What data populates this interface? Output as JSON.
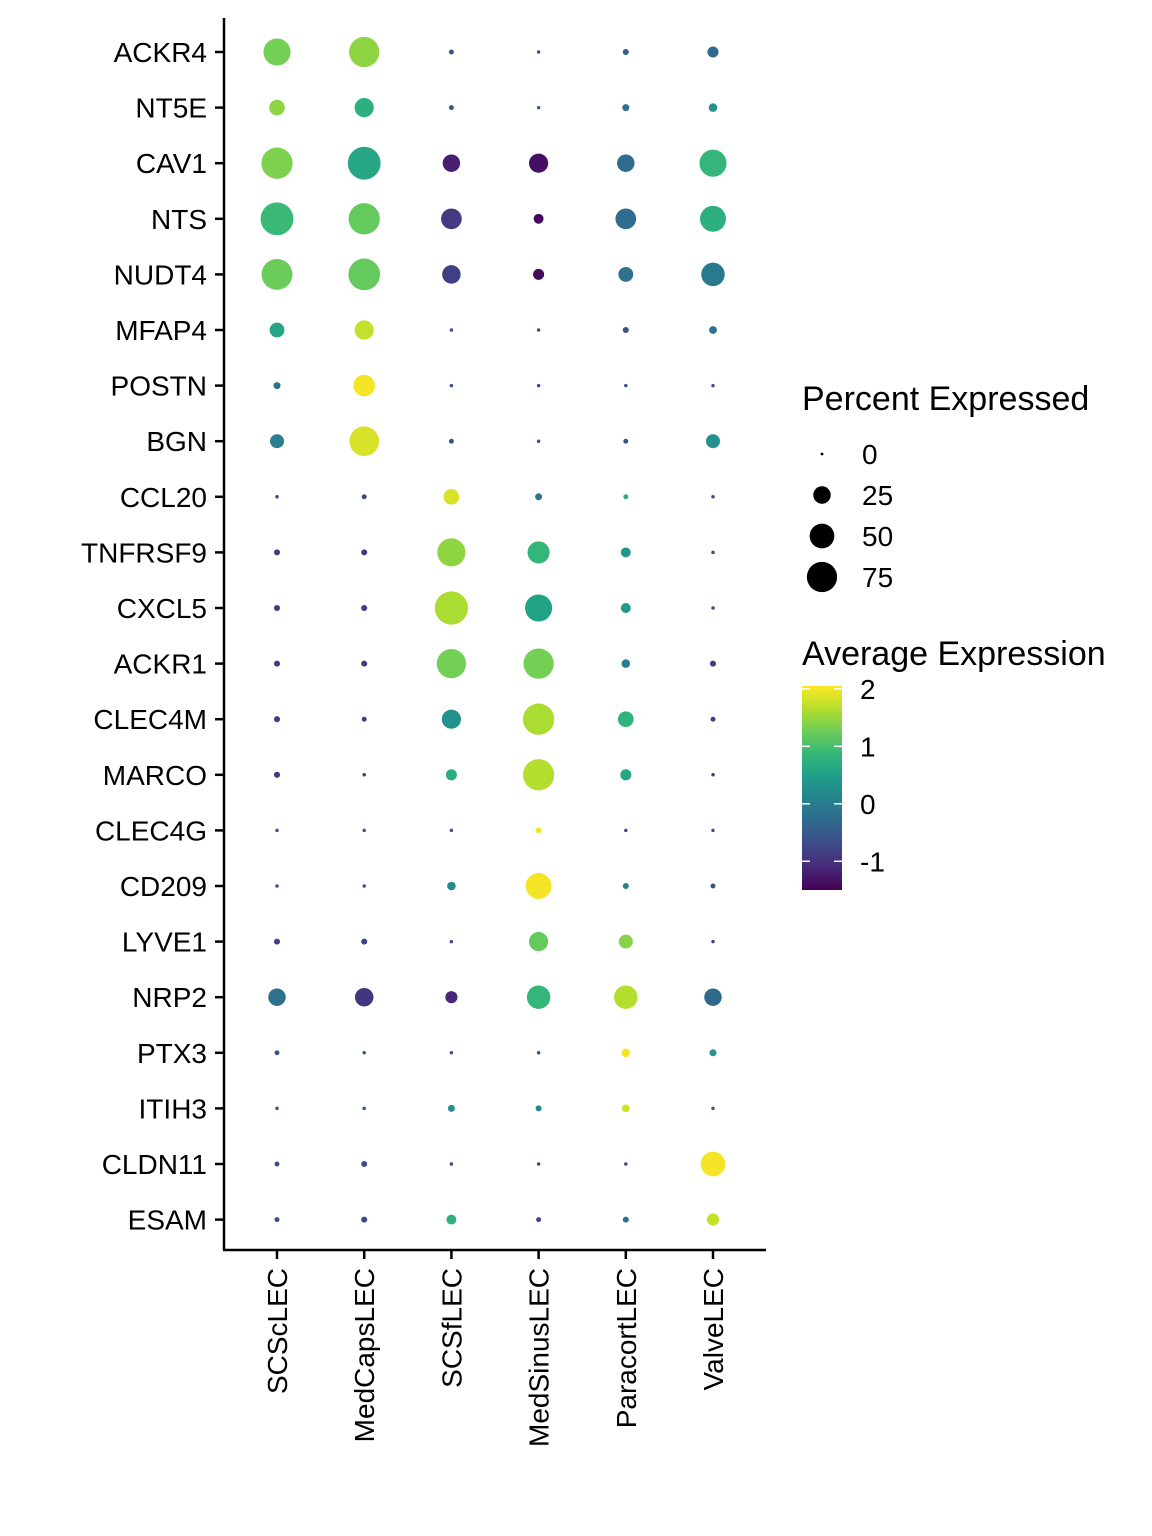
{
  "chart_data": {
    "type": "dot",
    "x_categories": [
      "SCScLEC",
      "MedCapsLEC",
      "SCSfLEC",
      "MedSinusLEC",
      "ParacortLEC",
      "ValveLEC"
    ],
    "y_categories": [
      "ACKR4",
      "NT5E",
      "CAV1",
      "NTS",
      "NUDT4",
      "MFAP4",
      "POSTN",
      "BGN",
      "CCL20",
      "TNFRSF9",
      "CXCL5",
      "ACKR1",
      "CLEC4M",
      "MARCO",
      "CLEC4G",
      "CD209",
      "LYVE1",
      "NRP2",
      "PTX3",
      "ITIH3",
      "CLDN11",
      "ESAM"
    ],
    "percent_expressed": [
      [
        60,
        75,
        2,
        1,
        3,
        10
      ],
      [
        20,
        30,
        2,
        1,
        4,
        6
      ],
      [
        80,
        88,
        25,
        30,
        25,
        60
      ],
      [
        88,
        80,
        35,
        8,
        35,
        55
      ],
      [
        78,
        82,
        28,
        10,
        18,
        45
      ],
      [
        18,
        30,
        1,
        1,
        3,
        5
      ],
      [
        4,
        38,
        1,
        1,
        1,
        1
      ],
      [
        16,
        72,
        2,
        1,
        2,
        16
      ],
      [
        1,
        2,
        20,
        4,
        2,
        1
      ],
      [
        3,
        3,
        65,
        40,
        8,
        1
      ],
      [
        3,
        3,
        90,
        60,
        8,
        1
      ],
      [
        3,
        3,
        70,
        75,
        6,
        3
      ],
      [
        3,
        2,
        30,
        80,
        20,
        2
      ],
      [
        3,
        1,
        10,
        80,
        10,
        1
      ],
      [
        1,
        1,
        1,
        3,
        1,
        1
      ],
      [
        1,
        1,
        6,
        55,
        3,
        2
      ],
      [
        3,
        3,
        1,
        30,
        16,
        1
      ],
      [
        25,
        28,
        12,
        45,
        45,
        25
      ],
      [
        2,
        1,
        1,
        1,
        6,
        4
      ],
      [
        1,
        1,
        4,
        3,
        5,
        1
      ],
      [
        2,
        3,
        1,
        1,
        1,
        50
      ],
      [
        2,
        3,
        8,
        2,
        3,
        12
      ]
    ],
    "average_expression": [
      [
        1.3,
        1.45,
        -0.6,
        -0.6,
        -0.5,
        -0.3
      ],
      [
        1.45,
        0.75,
        -0.5,
        -0.5,
        -0.2,
        0.3
      ],
      [
        1.35,
        0.6,
        -1.2,
        -1.35,
        -0.25,
        0.85
      ],
      [
        0.9,
        1.2,
        -0.9,
        -1.45,
        -0.25,
        0.75
      ],
      [
        1.25,
        1.2,
        -0.85,
        -1.4,
        -0.2,
        -0.05
      ],
      [
        0.6,
        1.75,
        -0.6,
        -0.6,
        -0.6,
        -0.2
      ],
      [
        -0.2,
        2.0,
        -0.6,
        -0.6,
        -0.6,
        -0.6
      ],
      [
        0.05,
        1.85,
        -0.6,
        -0.6,
        -0.6,
        0.3
      ],
      [
        -0.8,
        -0.8,
        1.85,
        -0.1,
        0.7,
        -0.7
      ],
      [
        -0.9,
        -0.9,
        1.45,
        0.85,
        0.35,
        -0.7
      ],
      [
        -0.9,
        -0.9,
        1.6,
        0.55,
        0.45,
        -0.7
      ],
      [
        -0.9,
        -0.9,
        1.3,
        1.3,
        0.05,
        -0.9
      ],
      [
        -0.9,
        -0.9,
        0.3,
        1.6,
        0.8,
        -0.9
      ],
      [
        -0.9,
        -0.9,
        0.7,
        1.65,
        0.6,
        -0.9
      ],
      [
        -0.6,
        -0.6,
        -0.6,
        2.0,
        -0.6,
        -0.6
      ],
      [
        -0.6,
        -0.6,
        0.2,
        2.0,
        0.1,
        -0.6
      ],
      [
        -0.8,
        -0.8,
        -0.7,
        1.2,
        1.4,
        -0.8
      ],
      [
        -0.2,
        -0.95,
        -1.1,
        0.85,
        1.65,
        -0.3
      ],
      [
        -0.6,
        -0.6,
        -0.6,
        -0.6,
        2.0,
        0.3
      ],
      [
        -0.6,
        -0.6,
        0.3,
        0.2,
        1.8,
        -0.6
      ],
      [
        -0.7,
        -0.7,
        -0.7,
        -0.7,
        -0.7,
        2.0
      ],
      [
        -0.7,
        -0.7,
        0.75,
        -0.8,
        -0.1,
        1.75
      ]
    ],
    "size_legend": {
      "title": "Percent Expressed",
      "breaks": [
        0,
        25,
        50,
        75
      ],
      "labels": [
        "0",
        "25",
        "50",
        "75"
      ]
    },
    "color_legend": {
      "title": "Average Expression",
      "range": [
        -1.5,
        2.05
      ],
      "breaks": [
        2,
        1,
        0,
        -1
      ],
      "labels": [
        "2",
        "1",
        "0",
        "-1"
      ],
      "palette": [
        "#440154",
        "#482878",
        "#3E4A89",
        "#31688E",
        "#26828E",
        "#1F9E89",
        "#35B779",
        "#6DCD59",
        "#B4DE2C",
        "#FDE725"
      ]
    },
    "grid": false
  }
}
